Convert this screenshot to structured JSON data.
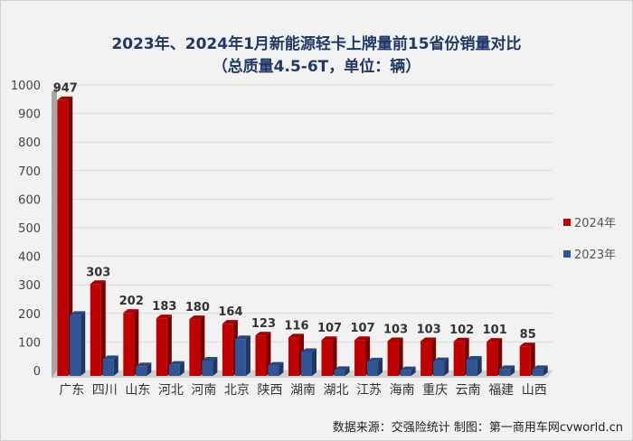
{
  "chart_data": {
    "type": "bar",
    "title": "2023年、2024年1月新能源轻卡上牌量前15省份销量对比",
    "subtitle": "（总质量4.5-6T，单位：辆）",
    "categories": [
      "广东",
      "四川",
      "山东",
      "河北",
      "河南",
      "北京",
      "陕西",
      "湖南",
      "湖北",
      "江苏",
      "海南",
      "重庆",
      "云南",
      "福建",
      "山西"
    ],
    "series": [
      {
        "name": "2024年",
        "color": "#c00000",
        "values": [
          947,
          303,
          202,
          183,
          180,
          164,
          123,
          116,
          107,
          107,
          103,
          103,
          102,
          101,
          85
        ],
        "labels_shown": true
      },
      {
        "name": "2023年",
        "color": "#2f5597",
        "values": [
          195,
          40,
          15,
          20,
          35,
          110,
          17,
          65,
          2,
          32,
          1,
          33,
          38,
          5,
          5
        ],
        "labels_shown": false
      }
    ],
    "yticks": [
      0,
      100,
      200,
      300,
      400,
      500,
      600,
      700,
      800,
      900,
      1000
    ],
    "ylim": [
      0,
      1000
    ],
    "grid": true,
    "legend": "right"
  },
  "footer": "数据来源：交强险统计  制图：第一商用车网cvworld.cn"
}
